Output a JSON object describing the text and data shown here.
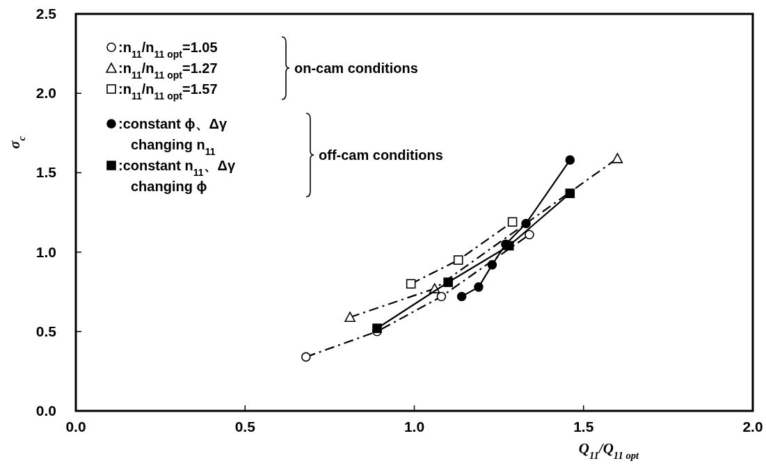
{
  "chart_data": {
    "type": "line",
    "xlabel": "Q$_{11}$/Q$_{11 opt}$",
    "ylabel": "σ$_{c}$",
    "xlim": [
      0,
      2
    ],
    "xticks": [
      {
        "value": 0,
        "label": "0.0"
      },
      0.5,
      {
        "value": 1,
        "label": "1.0"
      },
      1.5,
      {
        "value": 2,
        "label": "2.0"
      }
    ],
    "ylim": [
      0,
      2.5
    ],
    "yticks": [
      {
        "value": 0,
        "label": "0.0"
      },
      0.5,
      {
        "value": 1,
        "label": "1.0"
      },
      1.5,
      {
        "value": 2,
        "label": "2.0"
      },
      2.5
    ],
    "grid": false,
    "legend": "top left",
    "series": [
      {
        "name": ":n$_{11}$/n$_{11 opt}$=1.05",
        "color": "#000000",
        "marker": "circle",
        "line_style": "dashed",
        "x": [
          0.68,
          0.89,
          1.08,
          1.34
        ],
        "values": [
          0.34,
          0.5,
          0.72,
          1.11
        ]
      },
      {
        "name": ":n$_{11}$/n$_{11 opt}$=1.27",
        "color": "#000000",
        "marker": "triangle",
        "line_style": "dashed",
        "x": [
          0.81,
          1.06,
          1.6
        ],
        "values": [
          0.59,
          0.77,
          1.59
        ]
      },
      {
        "name": ":n$_{11}$/n$_{11 opt}$=1.57",
        "color": "#000000",
        "marker": "square",
        "line_style": "dashed",
        "x": [
          0.99,
          1.13,
          1.29
        ],
        "values": [
          0.8,
          0.95,
          1.19
        ]
      },
      {
        "name": ":constant ϕ、Δγ\nchanging n$_{11}$",
        "color": "#000000",
        "marker": "circle",
        "line_style": "solid",
        "x": [
          1.14,
          1.19,
          1.23,
          1.27,
          1.33,
          1.46
        ],
        "values": [
          0.72,
          0.78,
          0.92,
          1.05,
          1.18,
          1.58
        ]
      },
      {
        "name": ":constant n$_{11}$、Δγ\nchanging ϕ",
        "color": "#000000",
        "marker": "square",
        "line_style": "solid",
        "x": [
          0.89,
          1.1,
          1.28,
          1.46
        ],
        "values": [
          0.52,
          0.81,
          1.04,
          1.37
        ]
      }
    ],
    "annotations": [
      "on-cam conditions",
      "off-cam conditions"
    ]
  }
}
